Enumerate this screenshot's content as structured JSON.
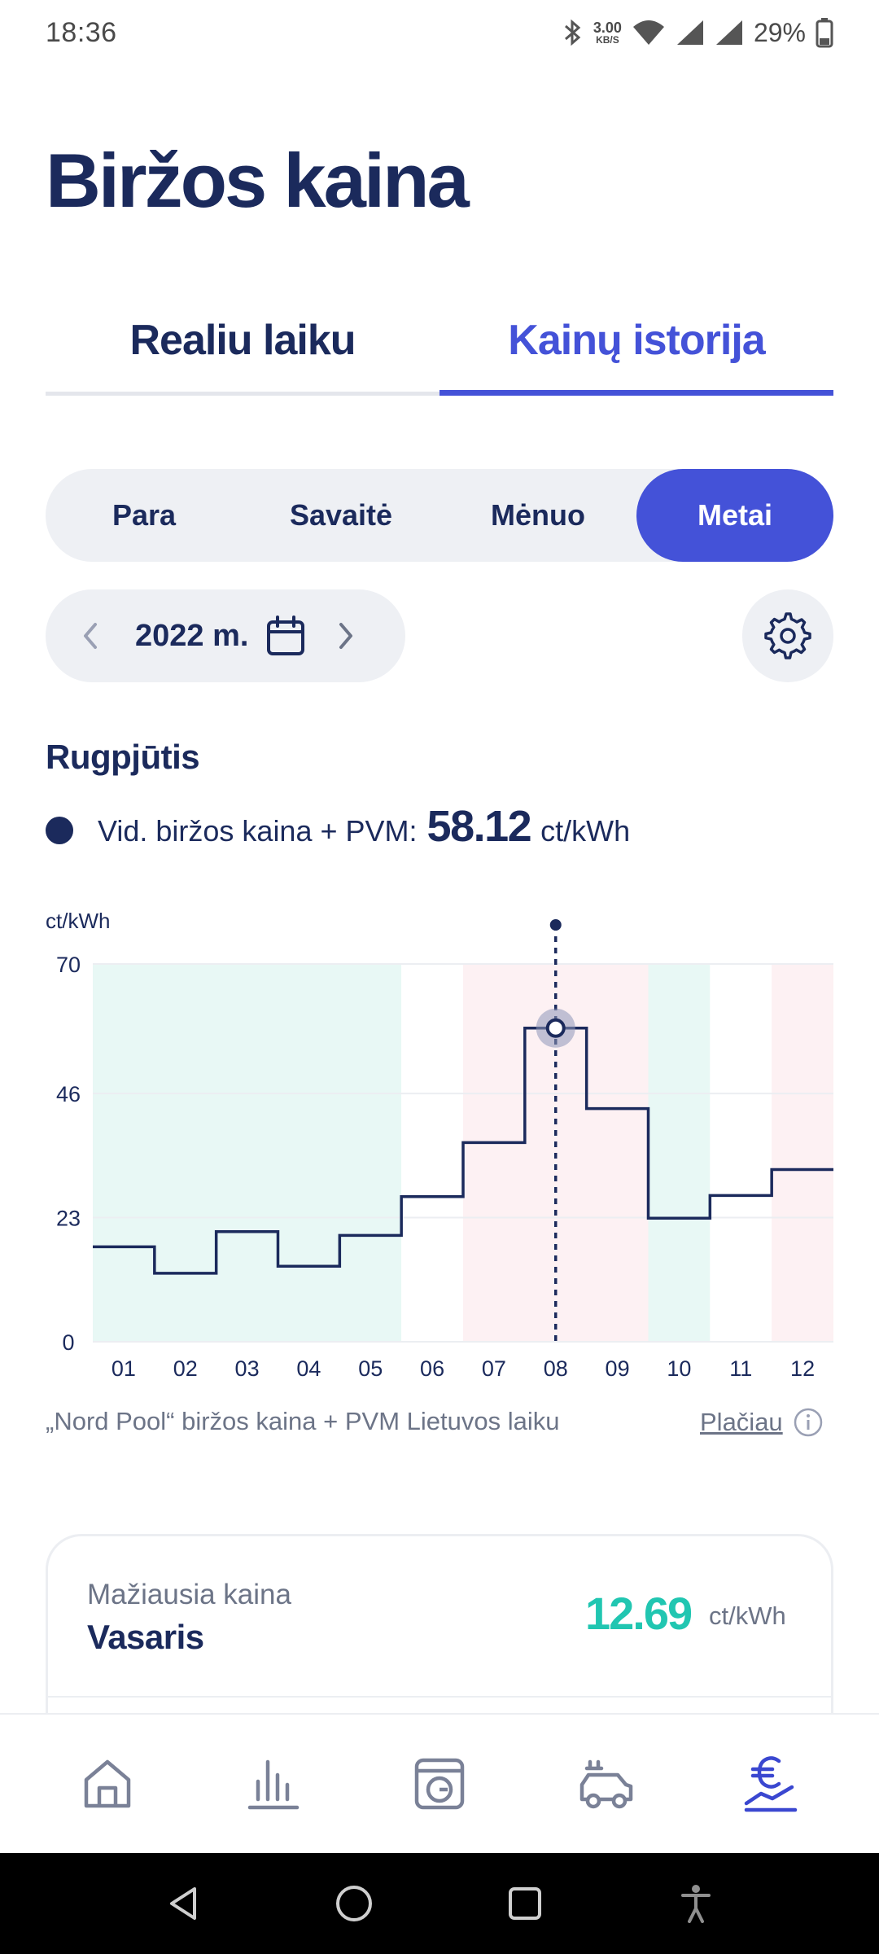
{
  "status_bar": {
    "time": "18:36",
    "net_speed": "3.00",
    "net_unit": "KB/S",
    "battery": "29%"
  },
  "page": {
    "title": "Biržos kaina"
  },
  "tabs": [
    {
      "label": "Realiu laiku",
      "active": false
    },
    {
      "label": "Kainų istorija",
      "active": true
    }
  ],
  "period": {
    "options": [
      "Para",
      "Savaitė",
      "Mėnuo",
      "Metai"
    ],
    "selected": "Metai"
  },
  "date_picker": {
    "label": "2022 m."
  },
  "selection": {
    "month": "Rugpjūtis",
    "avg_label": "Vid. biržos kaina + PVM:",
    "avg_value": "58.12",
    "avg_unit": "ct/kWh"
  },
  "chart_data": {
    "type": "step-line",
    "y_unit_label": "ct/kWh",
    "categories": [
      "01",
      "02",
      "03",
      "04",
      "05",
      "06",
      "07",
      "08",
      "09",
      "10",
      "11",
      "12"
    ],
    "series": [
      {
        "values": [
          17.6,
          12.69,
          20.4,
          14.0,
          19.7,
          26.9,
          36.9,
          58.12,
          43.2,
          22.9,
          27.1,
          31.9
        ]
      }
    ],
    "y_ticks": [
      0,
      23,
      46,
      70
    ],
    "ylim": [
      0,
      70
    ],
    "selected_category": "08",
    "background_zones": [
      {
        "from": "01",
        "to": "05",
        "color": "#e8f8f5"
      },
      {
        "from": "06",
        "to": "06",
        "color": "#ffffff"
      },
      {
        "from": "07",
        "to": "09",
        "color": "#fdf1f3"
      },
      {
        "from": "10",
        "to": "10",
        "color": "#e8f8f5"
      },
      {
        "from": "11",
        "to": "11",
        "color": "#ffffff"
      },
      {
        "from": "12",
        "to": "12",
        "color": "#fdf1f3"
      }
    ],
    "line_color": "#1b2a5c",
    "grid": true
  },
  "footnote": {
    "text": "„Nord Pool“ biržos kaina + PVM Lietuvos laiku",
    "link": "Plačiau"
  },
  "summary_card": {
    "label": "Mažiausia kaina",
    "month": "Vasaris",
    "value": "12.69",
    "unit": "ct/kWh",
    "value_color": "#21c6b1"
  },
  "bottom_nav": [
    "home-icon",
    "bar-chart-icon",
    "appliance-icon",
    "ev-car-icon",
    "euro-trend-icon"
  ],
  "colors": {
    "primary": "#4452d8",
    "navy": "#1b2a5c",
    "teal": "#21c6b1",
    "muted": "#6c7487"
  }
}
